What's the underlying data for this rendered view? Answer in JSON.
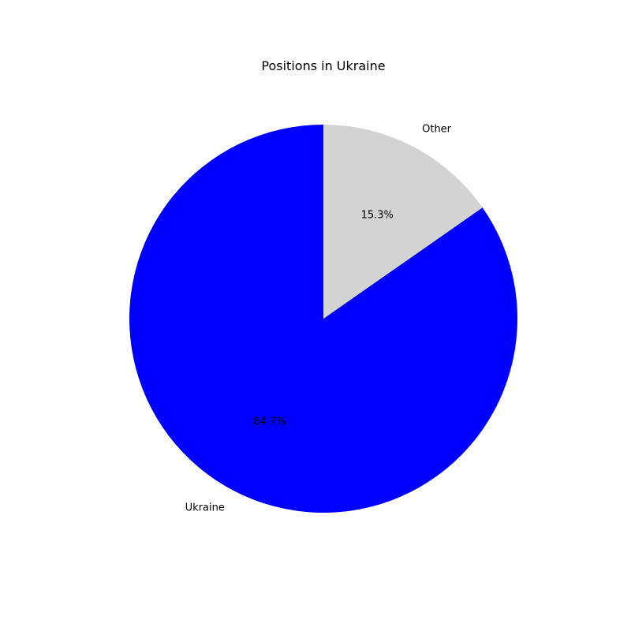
{
  "chart_data": {
    "type": "pie",
    "title": "Positions in Ukraine",
    "start_angle_deg": 90,
    "direction": "counterclockwise",
    "slices": [
      {
        "label": "Ukraine",
        "value": 84.7,
        "pct_label": "84.7%",
        "color": "#0000ff"
      },
      {
        "label": "Other",
        "value": 15.3,
        "pct_label": "15.3%",
        "color": "#d3d3d3"
      }
    ]
  }
}
